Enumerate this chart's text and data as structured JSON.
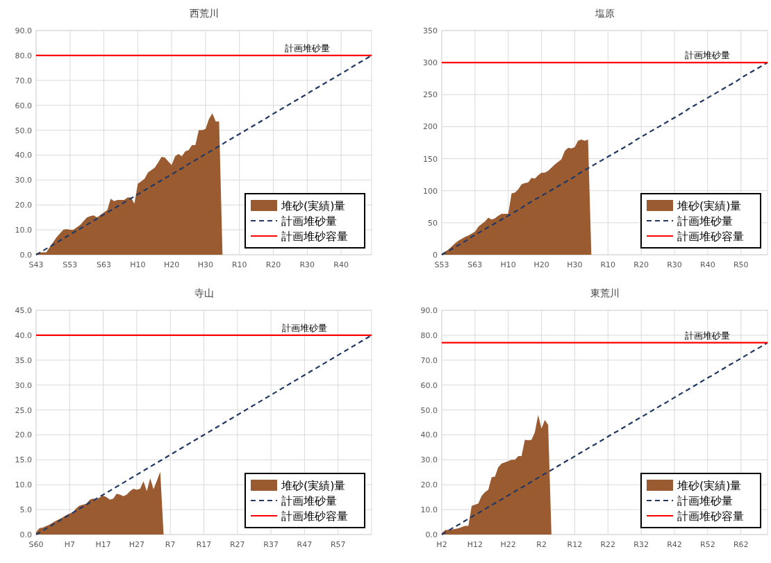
{
  "chart_data": [
    {
      "type": "area",
      "title": "西荒川",
      "ylim": [
        0,
        90
      ],
      "categories": [
        "S43",
        null,
        null,
        null,
        null,
        null,
        null,
        null,
        null,
        null,
        "S53",
        null,
        null,
        null,
        null,
        null,
        null,
        null,
        null,
        null,
        "S63",
        null,
        null,
        null,
        null,
        null,
        null,
        null,
        null,
        null,
        "H10",
        null,
        null,
        null,
        null,
        null,
        null,
        null,
        null,
        null,
        "H20",
        null,
        null,
        null,
        null,
        null,
        null,
        null,
        null,
        null,
        "H30",
        null,
        null,
        null,
        null,
        null,
        null,
        null,
        null,
        null,
        "R10",
        null,
        null,
        null,
        null,
        null,
        null,
        null,
        null,
        null,
        "R20",
        null,
        null,
        null,
        null,
        null,
        null,
        null,
        null,
        null,
        "R30",
        null,
        null,
        null,
        null,
        null,
        null,
        null,
        null,
        null,
        "R40",
        null,
        null,
        null,
        null,
        null,
        null,
        null,
        null,
        null
      ],
      "yticks": [
        {
          "value": 0,
          "label": "0.0"
        },
        {
          "value": 10,
          "label": "10.0"
        },
        {
          "value": 20,
          "label": "20.0"
        },
        {
          "value": 30,
          "label": "30.0"
        },
        {
          "value": 40,
          "label": "40.0"
        },
        {
          "value": 50,
          "label": "50.0"
        },
        {
          "value": 60,
          "label": "60.0"
        },
        {
          "value": 70,
          "label": "70.0"
        },
        {
          "value": 80,
          "label": "80.0"
        },
        {
          "value": 90,
          "label": "90.0"
        }
      ],
      "grid": true,
      "legend": "bottom right",
      "series": [
        {
          "name": "堆砂(実績)量",
          "color": "#9a5b31",
          "values": [
            0.5,
            1,
            1,
            1,
            3,
            5,
            7,
            8.5,
            10,
            10.3,
            10,
            10,
            11,
            12,
            13.5,
            15,
            15.5,
            15.8,
            15,
            16,
            17,
            18,
            22.5,
            21.5,
            22,
            22,
            22,
            23,
            23,
            20.5,
            28.5,
            29.5,
            30.5,
            33,
            34,
            35,
            37,
            39.3,
            39,
            37.5,
            36,
            39.5,
            40.5,
            39.5,
            41.5,
            42,
            44,
            44,
            50,
            50,
            50.5,
            54.5,
            56.8,
            53.5,
            53.5,
            0,
            null,
            null,
            null,
            null,
            null,
            null,
            null,
            null,
            null,
            null,
            null,
            null,
            null,
            null,
            null,
            null,
            null,
            null,
            null,
            null,
            null,
            null,
            null,
            null,
            null,
            null,
            null,
            null,
            null,
            null,
            null,
            null,
            null,
            null,
            null,
            null,
            null,
            null,
            null,
            null,
            null,
            null,
            null,
            null
          ]
        },
        {
          "name": "計画堆砂量",
          "type": "line",
          "line_style": "dashed",
          "color": "#203864",
          "values": [
            0,
            0.8,
            1.6,
            2.4,
            3.2,
            4.0,
            4.8,
            5.7,
            6.5,
            7.3,
            8.1,
            8.9,
            9.7,
            10.5,
            11.3,
            12.1,
            12.9,
            13.7,
            14.5,
            15.4,
            16.2,
            17.0,
            17.8,
            18.6,
            19.4,
            20.2,
            21.0,
            21.8,
            22.6,
            23.4,
            24.2,
            25.1,
            25.9,
            26.7,
            27.5,
            28.3,
            29.1,
            29.9,
            30.7,
            31.5,
            32.3,
            33.1,
            33.9,
            34.7,
            35.6,
            36.4,
            37.2,
            38.0,
            38.8,
            39.6,
            40.4,
            41.2,
            42.0,
            42.8,
            43.6,
            44.4,
            45.3,
            46.1,
            46.9,
            47.7,
            48.5,
            49.3,
            50.1,
            50.9,
            51.7,
            52.5,
            53.3,
            54.1,
            54.9,
            55.8,
            56.6,
            57.4,
            58.2,
            59.0,
            59.8,
            60.6,
            61.4,
            62.2,
            63.0,
            63.8,
            64.6,
            65.5,
            66.3,
            67.1,
            67.9,
            68.7,
            69.5,
            70.3,
            71.1,
            71.9,
            72.7,
            73.5,
            74.3,
            75.2,
            76.0,
            76.8,
            77.6,
            78.4,
            79.2,
            80
          ]
        },
        {
          "name": "計画堆砂容量",
          "type": "line",
          "line_style": "solid",
          "color": "#ff0000",
          "values": [
            80,
            80,
            80,
            80,
            80,
            80,
            80,
            80,
            80,
            80,
            80,
            80,
            80,
            80,
            80,
            80,
            80,
            80,
            80,
            80,
            80,
            80,
            80,
            80,
            80,
            80,
            80,
            80,
            80,
            80,
            80,
            80,
            80,
            80,
            80,
            80,
            80,
            80,
            80,
            80,
            80,
            80,
            80,
            80,
            80,
            80,
            80,
            80,
            80,
            80,
            80,
            80,
            80,
            80,
            80,
            80,
            80,
            80,
            80,
            80,
            80,
            80,
            80,
            80,
            80,
            80,
            80,
            80,
            80,
            80,
            80,
            80,
            80,
            80,
            80,
            80,
            80,
            80,
            80,
            80,
            80,
            80,
            80,
            80,
            80,
            80,
            80,
            80,
            80,
            80,
            80,
            80,
            80,
            80,
            80,
            80,
            80,
            80,
            80,
            80
          ]
        }
      ],
      "annotations": [
        {
          "text": "計画堆砂量",
          "x": "R30",
          "y": 80
        }
      ]
    },
    {
      "type": "area",
      "title": "塩原",
      "ylim": [
        0,
        350
      ],
      "categories": [
        "S53",
        null,
        null,
        null,
        null,
        null,
        null,
        null,
        null,
        null,
        "S63",
        null,
        null,
        null,
        null,
        null,
        null,
        null,
        null,
        null,
        "H10",
        null,
        null,
        null,
        null,
        null,
        null,
        null,
        null,
        null,
        "H20",
        null,
        null,
        null,
        null,
        null,
        null,
        null,
        null,
        null,
        "H30",
        null,
        null,
        null,
        null,
        null,
        null,
        null,
        null,
        null,
        "R10",
        null,
        null,
        null,
        null,
        null,
        null,
        null,
        null,
        null,
        "R20",
        null,
        null,
        null,
        null,
        null,
        null,
        null,
        null,
        null,
        "R30",
        null,
        null,
        null,
        null,
        null,
        null,
        null,
        null,
        null,
        "R40",
        null,
        null,
        null,
        null,
        null,
        null,
        null,
        null,
        null,
        "R50",
        null,
        null,
        null,
        null,
        null,
        null,
        null,
        null
      ],
      "yticks": [
        0,
        50,
        100,
        150,
        200,
        250,
        300,
        350
      ],
      "grid": true,
      "legend": "bottom right",
      "series": [
        {
          "name": "堆砂(実績)量",
          "color": "#9a5b31",
          "values": [
            2,
            5,
            8,
            13,
            18,
            22,
            25,
            28,
            30,
            33,
            36,
            44,
            48,
            52,
            58,
            55,
            57,
            61,
            64,
            64,
            64,
            96,
            97,
            102,
            110,
            112,
            113,
            120,
            119,
            124,
            128,
            128,
            131,
            136,
            141,
            145,
            149,
            162,
            167,
            166,
            168,
            178,
            180,
            178,
            180,
            0,
            null,
            null,
            null,
            null,
            null,
            null,
            null,
            null,
            null,
            null,
            null,
            null,
            null,
            null,
            null,
            null,
            null,
            null,
            null,
            null,
            null,
            null,
            null,
            null,
            null,
            null,
            null,
            null,
            null,
            null,
            null,
            null,
            null,
            null,
            null,
            null,
            null,
            null,
            null,
            null,
            null,
            null,
            null,
            null,
            null,
            null,
            null,
            null,
            null,
            null,
            null,
            null,
            null
          ]
        },
        {
          "name": "計画堆砂量",
          "type": "line",
          "line_style": "dashed",
          "color": "#203864",
          "values": [
            0,
            3,
            6,
            9,
            12,
            15,
            18,
            21,
            24,
            28,
            31,
            34,
            37,
            40,
            43,
            46,
            49,
            52,
            55,
            58,
            61,
            64,
            67,
            70,
            73,
            77,
            80,
            83,
            86,
            89,
            92,
            95,
            98,
            101,
            104,
            107,
            110,
            113,
            116,
            119,
            122,
            126,
            129,
            132,
            135,
            138,
            141,
            144,
            147,
            150,
            153,
            156,
            159,
            162,
            165,
            168,
            171,
            174,
            178,
            181,
            184,
            187,
            190,
            193,
            196,
            199,
            202,
            205,
            208,
            211,
            214,
            217,
            220,
            223,
            227,
            230,
            233,
            236,
            239,
            242,
            245,
            248,
            251,
            254,
            257,
            260,
            263,
            266,
            269,
            272,
            276,
            279,
            282,
            285,
            288,
            291,
            294,
            297,
            300
          ]
        },
        {
          "name": "計画堆砂容量",
          "type": "line",
          "line_style": "solid",
          "color": "#ff0000",
          "values": [
            300,
            300,
            300,
            300,
            300,
            300,
            300,
            300,
            300,
            300,
            300,
            300,
            300,
            300,
            300,
            300,
            300,
            300,
            300,
            300,
            300,
            300,
            300,
            300,
            300,
            300,
            300,
            300,
            300,
            300,
            300,
            300,
            300,
            300,
            300,
            300,
            300,
            300,
            300,
            300,
            300,
            300,
            300,
            300,
            300,
            300,
            300,
            300,
            300,
            300,
            300,
            300,
            300,
            300,
            300,
            300,
            300,
            300,
            300,
            300,
            300,
            300,
            300,
            300,
            300,
            300,
            300,
            300,
            300,
            300,
            300,
            300,
            300,
            300,
            300,
            300,
            300,
            300,
            300,
            300,
            300,
            300,
            300,
            300,
            300,
            300,
            300,
            300,
            300,
            300,
            300,
            300,
            300,
            300,
            300,
            300,
            300,
            300,
            300
          ]
        }
      ],
      "annotations": [
        {
          "text": "計画堆砂量",
          "x": "R40",
          "y": 300
        }
      ]
    },
    {
      "type": "area",
      "title": "寺山",
      "ylim": [
        0,
        45
      ],
      "categories": [
        "S60",
        null,
        null,
        null,
        null,
        null,
        null,
        null,
        null,
        null,
        "H7",
        null,
        null,
        null,
        null,
        null,
        null,
        null,
        null,
        null,
        "H17",
        null,
        null,
        null,
        null,
        null,
        null,
        null,
        null,
        null,
        "H27",
        null,
        null,
        null,
        null,
        null,
        null,
        null,
        null,
        null,
        "R7",
        null,
        null,
        null,
        null,
        null,
        null,
        null,
        null,
        null,
        "R17",
        null,
        null,
        null,
        null,
        null,
        null,
        null,
        null,
        null,
        "R27",
        null,
        null,
        null,
        null,
        null,
        null,
        null,
        null,
        null,
        "R37",
        null,
        null,
        null,
        null,
        null,
        null,
        null,
        null,
        null,
        "R47",
        null,
        null,
        null,
        null,
        null,
        null,
        null,
        null,
        null,
        "R57",
        null,
        null,
        null,
        null,
        null,
        null,
        null,
        null,
        null,
        null
      ],
      "yticks": [
        {
          "value": 0,
          "label": "0.0"
        },
        {
          "value": 5,
          "label": "5.0"
        },
        {
          "value": 10,
          "label": "10.0"
        },
        {
          "value": 15,
          "label": "15.0"
        },
        {
          "value": 20,
          "label": "20.0"
        },
        {
          "value": 25,
          "label": "25.0"
        },
        {
          "value": 30,
          "label": "30.0"
        },
        {
          "value": 35,
          "label": "35.0"
        },
        {
          "value": 40,
          "label": "40.0"
        },
        {
          "value": 45,
          "label": "45.0"
        }
      ],
      "grid": true,
      "legend": "bottom right",
      "series": [
        {
          "name": "堆砂(実績)量",
          "color": "#9a5b31",
          "values": [
            0.5,
            1.3,
            1.4,
            1.7,
            2,
            2.4,
            2.8,
            3.1,
            3.5,
            3.9,
            4.2,
            4.5,
            5.3,
            5.8,
            6,
            6.2,
            7,
            7.2,
            7,
            7.5,
            7.8,
            7.5,
            7,
            7.2,
            8.2,
            8,
            7.7,
            8,
            8.7,
            9.2,
            9,
            9.2,
            10.7,
            8.7,
            11.3,
            9.1,
            10.8,
            12.6,
            0,
            null,
            null,
            null,
            null,
            null,
            null,
            null,
            null,
            null,
            null,
            null,
            null,
            null,
            null,
            null,
            null,
            null,
            null,
            null,
            null,
            null,
            null,
            null,
            null,
            null,
            null,
            null,
            null,
            null,
            null,
            null,
            null,
            null,
            null,
            null,
            null,
            null,
            null,
            null,
            null,
            null,
            null,
            null,
            null,
            null,
            null,
            null,
            null,
            null,
            null,
            null,
            null,
            null,
            null,
            null,
            null,
            null,
            null,
            null,
            null,
            null,
            null
          ]
        },
        {
          "name": "計画堆砂量",
          "type": "line",
          "line_style": "dashed",
          "color": "#203864",
          "values": [
            0,
            0.4,
            0.8,
            1.2,
            1.6,
            2,
            2.4,
            2.8,
            3.2,
            3.6,
            4,
            4.4,
            4.8,
            5.2,
            5.6,
            6,
            6.4,
            6.8,
            7.2,
            7.6,
            8,
            8.4,
            8.8,
            9.2,
            9.6,
            10,
            10.4,
            10.8,
            11.2,
            11.6,
            12,
            12.4,
            12.8,
            13.2,
            13.6,
            14,
            14.4,
            14.8,
            15.2,
            15.6,
            16,
            16.4,
            16.8,
            17.2,
            17.6,
            18,
            18.4,
            18.8,
            19.2,
            19.6,
            20,
            20.4,
            20.8,
            21.2,
            21.6,
            22,
            22.4,
            22.8,
            23.2,
            23.6,
            24,
            24.4,
            24.8,
            25.2,
            25.6,
            26,
            26.4,
            26.8,
            27.2,
            27.6,
            28,
            28.4,
            28.8,
            29.2,
            29.6,
            30,
            30.4,
            30.8,
            31.2,
            31.6,
            32,
            32.4,
            32.8,
            33.2,
            33.6,
            34,
            34.4,
            34.8,
            35.2,
            35.6,
            36,
            36.4,
            36.8,
            37.2,
            37.6,
            38,
            38.4,
            38.8,
            39.2,
            39.6,
            40
          ]
        },
        {
          "name": "計画堆砂容量",
          "type": "line",
          "line_style": "solid",
          "color": "#ff0000",
          "values": [
            40,
            40,
            40,
            40,
            40,
            40,
            40,
            40,
            40,
            40,
            40,
            40,
            40,
            40,
            40,
            40,
            40,
            40,
            40,
            40,
            40,
            40,
            40,
            40,
            40,
            40,
            40,
            40,
            40,
            40,
            40,
            40,
            40,
            40,
            40,
            40,
            40,
            40,
            40,
            40,
            40,
            40,
            40,
            40,
            40,
            40,
            40,
            40,
            40,
            40,
            40,
            40,
            40,
            40,
            40,
            40,
            40,
            40,
            40,
            40,
            40,
            40,
            40,
            40,
            40,
            40,
            40,
            40,
            40,
            40,
            40,
            40,
            40,
            40,
            40,
            40,
            40,
            40,
            40,
            40,
            40,
            40,
            40,
            40,
            40,
            40,
            40,
            40,
            40,
            40,
            40,
            40,
            40,
            40,
            40,
            40,
            40,
            40,
            40,
            40,
            40
          ]
        }
      ],
      "annotations": [
        {
          "text": "計画堆砂量",
          "x": "R47",
          "y": 40
        }
      ]
    },
    {
      "type": "area",
      "title": "東荒川",
      "ylim": [
        0,
        90
      ],
      "categories": [
        "H2",
        null,
        null,
        null,
        null,
        null,
        null,
        null,
        null,
        null,
        "H12",
        null,
        null,
        null,
        null,
        null,
        null,
        null,
        null,
        null,
        "H22",
        null,
        null,
        null,
        null,
        null,
        null,
        null,
        null,
        null,
        "R2",
        null,
        null,
        null,
        null,
        null,
        null,
        null,
        null,
        null,
        "R12",
        null,
        null,
        null,
        null,
        null,
        null,
        null,
        null,
        null,
        "R22",
        null,
        null,
        null,
        null,
        null,
        null,
        null,
        null,
        null,
        "R32",
        null,
        null,
        null,
        null,
        null,
        null,
        null,
        null,
        null,
        "R42",
        null,
        null,
        null,
        null,
        null,
        null,
        null,
        null,
        null,
        "R52",
        null,
        null,
        null,
        null,
        null,
        null,
        null,
        null,
        null,
        "R62",
        null,
        null,
        null,
        null,
        null,
        null,
        null,
        null
      ],
      "yticks": [
        {
          "value": 0,
          "label": "0.0"
        },
        {
          "value": 10,
          "label": "10.0"
        },
        {
          "value": 20,
          "label": "20.0"
        },
        {
          "value": 30,
          "label": "30.0"
        },
        {
          "value": 40,
          "label": "40.0"
        },
        {
          "value": 50,
          "label": "50.0"
        },
        {
          "value": 60,
          "label": "60.0"
        },
        {
          "value": 70,
          "label": "70.0"
        },
        {
          "value": 80,
          "label": "80.0"
        },
        {
          "value": 90,
          "label": "90.0"
        }
      ],
      "grid": true,
      "legend": "bottom right",
      "series": [
        {
          "name": "堆砂(実績)量",
          "color": "#9a5b31",
          "values": [
            0.5,
            1.8,
            1.9,
            2,
            2.2,
            2.5,
            3,
            3.5,
            3.5,
            11.5,
            12,
            12.5,
            15.5,
            17,
            18,
            23,
            23.3,
            27,
            28.5,
            29,
            29.5,
            30,
            30,
            31.5,
            31.5,
            38,
            37.8,
            38,
            41,
            48,
            42.5,
            46,
            44,
            0,
            null,
            null,
            null,
            null,
            null,
            null,
            null,
            null,
            null,
            null,
            null,
            null,
            null,
            null,
            null,
            null,
            null,
            null,
            null,
            null,
            null,
            null,
            null,
            null,
            null,
            null,
            null,
            null,
            null,
            null,
            null,
            null,
            null,
            null,
            null,
            null,
            null,
            null,
            null,
            null,
            null,
            null,
            null,
            null,
            null,
            null,
            null,
            null,
            null,
            null,
            null,
            null,
            null,
            null,
            null,
            null,
            null,
            null,
            null,
            null,
            null,
            null,
            null,
            null,
            null
          ]
        },
        {
          "name": "計画堆砂量",
          "type": "line",
          "line_style": "dashed",
          "color": "#203864",
          "values": [
            0,
            0.8,
            1.6,
            2.4,
            3.1,
            3.9,
            4.7,
            5.5,
            6.3,
            7.1,
            7.9,
            8.6,
            9.4,
            10.2,
            11.0,
            11.8,
            12.6,
            13.4,
            14.1,
            14.9,
            15.7,
            16.5,
            17.3,
            18.1,
            18.9,
            19.6,
            20.4,
            21.2,
            22.0,
            22.8,
            23.6,
            24.4,
            25.1,
            25.9,
            26.7,
            27.5,
            28.3,
            29.1,
            29.9,
            30.6,
            31.4,
            32.2,
            33.0,
            33.8,
            34.6,
            35.4,
            36.1,
            36.9,
            37.7,
            38.5,
            39.3,
            40.1,
            40.9,
            41.6,
            42.4,
            43.2,
            44.0,
            44.8,
            45.6,
            46.4,
            47.1,
            47.9,
            48.7,
            49.5,
            50.3,
            51.1,
            51.9,
            52.6,
            53.4,
            54.2,
            55.0,
            55.8,
            56.6,
            57.4,
            58.1,
            58.9,
            59.7,
            60.5,
            61.3,
            62.1,
            62.9,
            63.6,
            64.4,
            65.2,
            66.0,
            66.8,
            67.6,
            68.4,
            69.1,
            69.9,
            70.7,
            71.5,
            72.3,
            73.1,
            73.9,
            74.6,
            75.4,
            76.2,
            77
          ]
        },
        {
          "name": "計画堆砂容量",
          "type": "line",
          "line_style": "solid",
          "color": "#ff0000",
          "values": [
            77,
            77,
            77,
            77,
            77,
            77,
            77,
            77,
            77,
            77,
            77,
            77,
            77,
            77,
            77,
            77,
            77,
            77,
            77,
            77,
            77,
            77,
            77,
            77,
            77,
            77,
            77,
            77,
            77,
            77,
            77,
            77,
            77,
            77,
            77,
            77,
            77,
            77,
            77,
            77,
            77,
            77,
            77,
            77,
            77,
            77,
            77,
            77,
            77,
            77,
            77,
            77,
            77,
            77,
            77,
            77,
            77,
            77,
            77,
            77,
            77,
            77,
            77,
            77,
            77,
            77,
            77,
            77,
            77,
            77,
            77,
            77,
            77,
            77,
            77,
            77,
            77,
            77,
            77,
            77,
            77,
            77,
            77,
            77,
            77,
            77,
            77,
            77,
            77,
            77,
            77,
            77,
            77,
            77,
            77,
            77,
            77,
            77,
            77
          ]
        }
      ],
      "annotations": [
        {
          "text": "計画堆砂量",
          "x": "R52",
          "y": 77
        }
      ]
    }
  ]
}
